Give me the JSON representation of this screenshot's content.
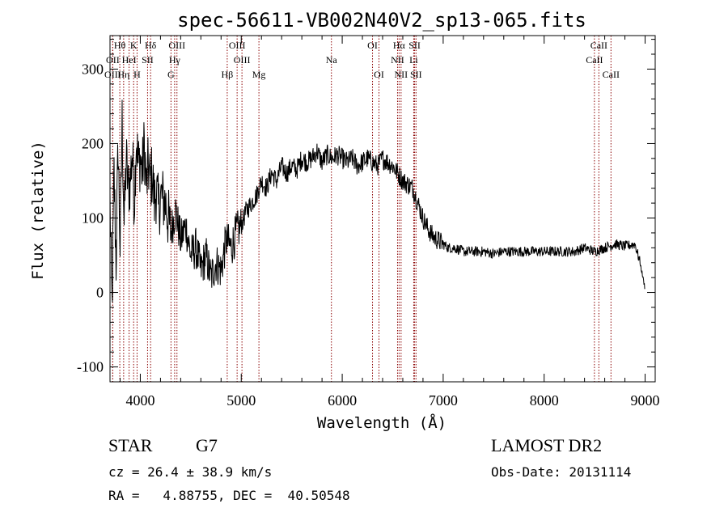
{
  "chart_data": {
    "type": "line",
    "title": "spec-56611-VB002N40V2_sp13-065.fits",
    "xlabel": "Wavelength (Å)",
    "ylabel": "Flux (relative)",
    "xlim": [
      3700,
      9100
    ],
    "ylim": [
      -120,
      345
    ],
    "xticks": [
      4000,
      5000,
      6000,
      7000,
      8000,
      9000
    ],
    "yticks": [
      -100,
      0,
      100,
      200,
      300
    ],
    "grid": false,
    "series": [
      {
        "x": [
          3700,
          3720,
          3740,
          3760,
          3780,
          3800,
          3820,
          3840,
          3860,
          3880,
          3900,
          3920,
          3940,
          3960,
          3980,
          4000,
          4020,
          4040,
          4060,
          4080,
          4100,
          4120,
          4140,
          4160,
          4180,
          4200,
          4250,
          4300,
          4350,
          4400,
          4450,
          4500,
          4550,
          4600,
          4650,
          4700,
          4750,
          4800,
          4850,
          4900,
          4950,
          5000,
          5050,
          5100,
          5150,
          5200,
          5250,
          5300,
          5350,
          5400,
          5450,
          5500,
          5550,
          5600,
          5650,
          5700,
          5750,
          5800,
          5850,
          5900,
          5950,
          6000,
          6050,
          6100,
          6150,
          6200,
          6250,
          6300,
          6350,
          6400,
          6450,
          6500,
          6550,
          6600,
          6650,
          6700,
          6750,
          6800,
          6850,
          6900,
          6950,
          7000,
          7050,
          7100,
          7150,
          7200,
          7300,
          7400,
          7500,
          7600,
          7700,
          7800,
          7900,
          8000,
          8100,
          8200,
          8300,
          8400,
          8500,
          8600,
          8700,
          8800,
          8900,
          8950,
          9000
        ],
        "y": [
          120,
          -20,
          160,
          40,
          200,
          60,
          230,
          90,
          180,
          140,
          150,
          190,
          120,
          210,
          170,
          180,
          160,
          200,
          140,
          170,
          150,
          160,
          120,
          140,
          110,
          130,
          120,
          80,
          110,
          70,
          90,
          50,
          60,
          30,
          50,
          20,
          40,
          30,
          70,
          60,
          80,
          90,
          110,
          120,
          130,
          150,
          140,
          160,
          150,
          170,
          160,
          170,
          165,
          180,
          175,
          180,
          190,
          175,
          185,
          180,
          185,
          180,
          175,
          180,
          170,
          175,
          180,
          175,
          170,
          180,
          175,
          170,
          160,
          150,
          145,
          140,
          120,
          100,
          85,
          75,
          70,
          65,
          60,
          60,
          58,
          55,
          55,
          55,
          52,
          55,
          55,
          55,
          55,
          55,
          55,
          55,
          55,
          60,
          55,
          60,
          65,
          62,
          65,
          40,
          5
        ]
      }
    ],
    "spectral_lines": [
      {
        "label": "Hθ",
        "x": 3797,
        "row": 0
      },
      {
        "label": "K",
        "x": 3934,
        "row": 0
      },
      {
        "label": "Hδ",
        "x": 4102,
        "row": 0
      },
      {
        "label": "OIII",
        "x": 4363,
        "row": 0
      },
      {
        "label": "OIII",
        "x": 4959,
        "row": 0
      },
      {
        "label": "OI",
        "x": 6300,
        "row": 0
      },
      {
        "label": "Hα",
        "x": 6563,
        "row": 0
      },
      {
        "label": "SII",
        "x": 6717,
        "row": 0
      },
      {
        "label": "CaII",
        "x": 8542,
        "row": 0
      },
      {
        "label": "OII",
        "x": 3727,
        "row": 1
      },
      {
        "label": "HeI",
        "x": 3889,
        "row": 1
      },
      {
        "label": "SII",
        "x": 4072,
        "row": 1
      },
      {
        "label": "Hγ",
        "x": 4340,
        "row": 1
      },
      {
        "label": "OIII",
        "x": 5007,
        "row": 1
      },
      {
        "label": "Na",
        "x": 5893,
        "row": 1
      },
      {
        "label": "NII",
        "x": 6548,
        "row": 1
      },
      {
        "label": "Li",
        "x": 6708,
        "row": 1
      },
      {
        "label": "CaII",
        "x": 8498,
        "row": 1
      },
      {
        "label": "OIII",
        "x": 3727,
        "row": 2
      },
      {
        "label": "Hη",
        "x": 3835,
        "row": 2
      },
      {
        "label": "H",
        "x": 3968,
        "row": 2
      },
      {
        "label": "G",
        "x": 4304,
        "row": 2
      },
      {
        "label": "Hβ",
        "x": 4861,
        "row": 2
      },
      {
        "label": "Mg",
        "x": 5175,
        "row": 2
      },
      {
        "label": "OI",
        "x": 6364,
        "row": 2
      },
      {
        "label": "NII",
        "x": 6583,
        "row": 2
      },
      {
        "label": "SII",
        "x": 6731,
        "row": 2
      },
      {
        "label": "CaII",
        "x": 8662,
        "row": 2
      }
    ],
    "line_color": "#000000",
    "marker_color": "#8b0000"
  },
  "info": {
    "object_class": "STAR",
    "subclass": "G7",
    "survey": "LAMOST DR2",
    "cz": "cz = 26.4 ± 38.9 km/s",
    "obs_date": "Obs-Date: 20131114",
    "coords": "RA =   4.88755, DEC =  40.50548"
  }
}
